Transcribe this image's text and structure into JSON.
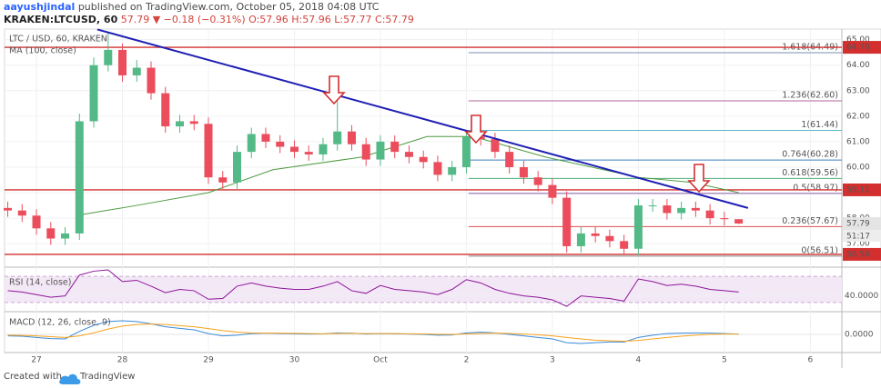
{
  "header": {
    "author": "aayushjindal",
    "published": " published on TradingView.com, October 05, 2018 04:08 UTC",
    "symbol": "KRAKEN:LTCUSD, 60",
    "quote": " 57.79 ▼ −0.18 (−0.31%) O:57.96 H:57.96 L:57.77 C:57.79"
  },
  "chart_data": {
    "type": "candlestick",
    "title": "LTC / USD, 60, KRAKEN",
    "up_color": "#53b987",
    "down_color": "#eb4d5c",
    "xlim": [
      -8.9,
      224.8
    ],
    "xticks": [
      {
        "value": 0,
        "label": "27"
      },
      {
        "value": 24,
        "label": "28"
      },
      {
        "value": 48,
        "label": "29"
      },
      {
        "value": 72,
        "label": "30"
      },
      {
        "value": 96,
        "label": "Oct"
      },
      {
        "value": 120,
        "label": "2"
      },
      {
        "value": 144,
        "label": "3"
      },
      {
        "value": 168,
        "label": "4"
      },
      {
        "value": 192,
        "label": "5"
      },
      {
        "value": 216,
        "label": "6"
      }
    ],
    "ylim": [
      56.15,
      65.38
    ],
    "yticks": [
      {
        "value": 57,
        "label": "57.00"
      },
      {
        "value": 58,
        "label": "58.00"
      },
      {
        "value": 59,
        "label": "59.00"
      },
      {
        "value": 60,
        "label": "60.00"
      },
      {
        "value": 61,
        "label": "61.00"
      },
      {
        "value": 62,
        "label": "62.00"
      },
      {
        "value": 63,
        "label": "63.00"
      },
      {
        "value": 64,
        "label": "64.00"
      },
      {
        "value": 65,
        "label": "65.00"
      }
    ],
    "x": [
      -8,
      -4,
      0,
      4,
      8,
      12,
      16,
      20,
      24,
      28,
      32,
      36,
      40,
      44,
      48,
      52,
      56,
      60,
      64,
      68,
      72,
      76,
      80,
      84,
      88,
      92,
      96,
      100,
      104,
      108,
      112,
      116,
      120,
      124,
      128,
      132,
      136,
      140,
      144,
      148,
      152,
      156,
      160,
      164,
      168,
      172,
      176,
      180,
      184,
      188,
      192,
      196
    ],
    "open": [
      58.4,
      58.3,
      58.1,
      57.6,
      57.2,
      57.4,
      61.8,
      64.0,
      64.6,
      63.6,
      63.9,
      62.9,
      61.6,
      61.8,
      61.7,
      59.6,
      59.4,
      60.6,
      61.3,
      61.0,
      60.8,
      60.6,
      60.5,
      60.9,
      61.4,
      60.9,
      60.3,
      61.0,
      60.6,
      60.4,
      60.2,
      59.7,
      60.0,
      61.2,
      61.1,
      60.6,
      60.0,
      59.6,
      59.3,
      58.8,
      56.9,
      57.4,
      57.3,
      57.1,
      56.8,
      58.5,
      58.5,
      58.2,
      58.4,
      58.3,
      58.0,
      57.96
    ],
    "high": [
      58.65,
      58.55,
      58.35,
      57.85,
      57.65,
      62.1,
      64.3,
      65.3,
      64.85,
      64.2,
      64.15,
      63.15,
      62.05,
      62.05,
      61.95,
      59.85,
      60.85,
      61.55,
      61.55,
      61.25,
      61.05,
      60.85,
      61.15,
      62.7,
      61.65,
      61.15,
      61.25,
      61.25,
      60.85,
      60.65,
      60.45,
      60.25,
      61.45,
      61.45,
      61.35,
      60.85,
      60.25,
      59.85,
      59.55,
      59.05,
      57.65,
      57.65,
      57.55,
      57.35,
      58.75,
      58.75,
      58.75,
      58.65,
      58.65,
      58.55,
      58.25,
      57.96
    ],
    "low": [
      58.05,
      57.85,
      57.35,
      56.95,
      56.95,
      57.15,
      61.55,
      63.75,
      63.35,
      63.35,
      62.65,
      61.35,
      61.35,
      61.45,
      59.35,
      59.15,
      59.15,
      60.35,
      60.75,
      60.55,
      60.35,
      60.25,
      60.25,
      60.65,
      60.65,
      60.05,
      60.05,
      60.35,
      60.15,
      59.95,
      59.45,
      59.45,
      59.75,
      60.85,
      60.35,
      59.75,
      59.35,
      59.05,
      58.55,
      56.65,
      56.65,
      57.05,
      56.85,
      56.55,
      56.55,
      58.25,
      57.95,
      57.95,
      58.05,
      57.75,
      57.71,
      57.77
    ],
    "close": [
      58.3,
      58.1,
      57.6,
      57.2,
      57.4,
      61.8,
      64.0,
      64.6,
      63.6,
      63.9,
      62.9,
      61.6,
      61.8,
      61.7,
      59.6,
      59.4,
      60.6,
      61.3,
      61.0,
      60.8,
      60.6,
      60.5,
      60.9,
      61.4,
      60.9,
      60.3,
      61.0,
      60.6,
      60.4,
      60.2,
      59.7,
      60.0,
      61.2,
      61.1,
      60.6,
      60.0,
      59.6,
      59.3,
      58.8,
      56.9,
      57.4,
      57.3,
      57.1,
      56.8,
      58.5,
      58.5,
      58.2,
      58.4,
      58.3,
      58.0,
      57.96,
      57.79
    ],
    "ma": {
      "name": "MA (100, close)",
      "color": "#4e9a3f",
      "x": [
        11,
        28,
        48,
        66,
        91,
        109,
        122,
        142,
        168,
        183,
        196
      ],
      "values": [
        58.1,
        58.5,
        59.0,
        59.9,
        60.4,
        61.2,
        61.2,
        60.4,
        59.6,
        59.4,
        59.0
      ]
    },
    "trendline": {
      "color": "#1f1fb4",
      "x": [
        17,
        198.6
      ],
      "y": [
        65.4,
        58.4
      ]
    },
    "price_lines": [
      {
        "value": 64.7,
        "label": "64.70"
      },
      {
        "value": 59.11,
        "label": "59.11"
      },
      {
        "value": 56.58,
        "label": "56.58"
      }
    ],
    "line_color": "#d32f2f",
    "last_price": {
      "value": 57.79,
      "label": "57.79"
    },
    "countdown": "51:17",
    "fib": {
      "x_start": 120.6,
      "levels": [
        {
          "label": "1.618(64.49)",
          "value": 64.49,
          "color": "#7b8fb3"
        },
        {
          "label": "1.236(62.60)",
          "value": 62.6,
          "color": "#b06a9a"
        },
        {
          "label": "1(61.44)",
          "value": 61.44,
          "color": "#59b7c9"
        },
        {
          "label": "0.764(60.28)",
          "value": 60.28,
          "color": "#3c7fc0"
        },
        {
          "label": "0.618(59.56)",
          "value": 59.56,
          "color": "#4caf78"
        },
        {
          "label": "0.5(58.97)",
          "value": 58.97,
          "color": "#8a5fa8"
        },
        {
          "label": "0.236(57.67)",
          "value": 57.67,
          "color": "#d9534f"
        },
        {
          "label": "0(56.51)",
          "value": 56.51,
          "color": "#8a8a8a"
        }
      ]
    },
    "rsi": {
      "name": "RSI (14, close)",
      "color": "#8e1599",
      "ylim": [
        20,
        80
      ],
      "band": [
        30,
        70
      ],
      "yticks": [
        {
          "value": 40,
          "label": "40.0000"
        }
      ],
      "values": [
        48,
        46,
        42,
        38,
        40,
        72,
        78,
        80,
        62,
        64,
        55,
        45,
        50,
        48,
        35,
        36,
        55,
        60,
        55,
        52,
        50,
        50,
        55,
        62,
        48,
        44,
        56,
        50,
        48,
        46,
        42,
        50,
        65,
        60,
        50,
        44,
        40,
        38,
        34,
        24,
        40,
        38,
        36,
        32,
        66,
        62,
        56,
        58,
        55,
        50,
        48,
        46
      ]
    },
    "macd": {
      "name": "MACD (12, 26, close, 9)",
      "ylim": [
        -1.2,
        1.2
      ],
      "yticks": [
        {
          "value": 0,
          "label": "0.0000"
        }
      ],
      "series": [
        {
          "color": "#3b8bd9",
          "values": [
            -0.1,
            -0.12,
            -0.2,
            -0.28,
            -0.3,
            0.2,
            0.6,
            0.85,
            0.9,
            0.85,
            0.7,
            0.5,
            0.4,
            0.3,
            0.05,
            -0.1,
            -0.05,
            0.05,
            0.08,
            0.06,
            0.04,
            0.02,
            0.03,
            0.1,
            0.08,
            0.02,
            0.05,
            0.04,
            0.02,
            0,
            -0.05,
            -0.04,
            0.1,
            0.15,
            0.1,
            0,
            -0.1,
            -0.2,
            -0.3,
            -0.55,
            -0.6,
            -0.55,
            -0.5,
            -0.5,
            -0.2,
            -0.05,
            0.05,
            0.08,
            0.1,
            0.08,
            0.05,
            0.02
          ]
        },
        {
          "color": "#f7a21b",
          "values": [
            -0.05,
            -0.07,
            -0.1,
            -0.15,
            -0.2,
            -0.1,
            0.1,
            0.35,
            0.55,
            0.65,
            0.68,
            0.65,
            0.58,
            0.5,
            0.38,
            0.25,
            0.15,
            0.1,
            0.09,
            0.08,
            0.07,
            0.05,
            0.04,
            0.06,
            0.07,
            0.05,
            0.05,
            0.05,
            0.04,
            0.03,
            0.01,
            0,
            0.03,
            0.06,
            0.08,
            0.06,
            0.02,
            -0.03,
            -0.1,
            -0.2,
            -0.3,
            -0.38,
            -0.42,
            -0.45,
            -0.4,
            -0.3,
            -0.2,
            -0.12,
            -0.05,
            0,
            0.02,
            0.02
          ]
        }
      ]
    }
  },
  "footer": {
    "text": "Created with",
    "brand": "TradingView"
  }
}
